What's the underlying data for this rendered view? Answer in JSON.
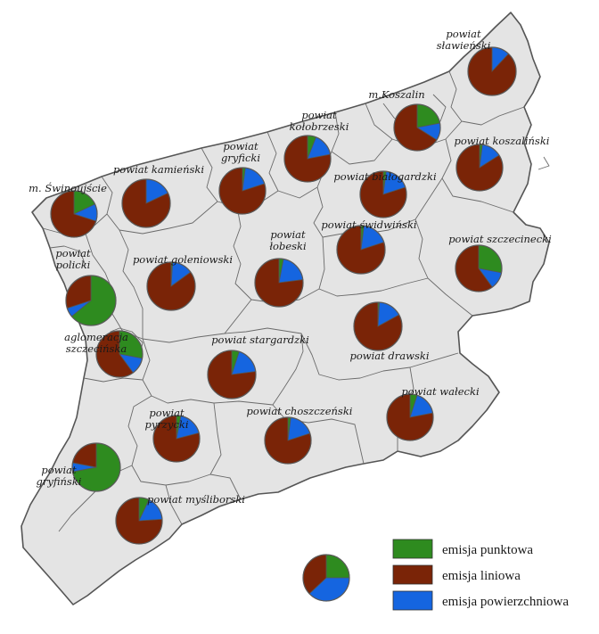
{
  "colors": {
    "punktowa": "#2e8b1f",
    "liniowa": "#7a2407",
    "powierzchniowa": "#1565e0",
    "region_fill": "#e4e4e4",
    "border": "#555555"
  },
  "legend": {
    "items": [
      {
        "key": "punktowa",
        "label": "emisja punktowa"
      },
      {
        "key": "liniowa",
        "label": "emisja liniowa"
      },
      {
        "key": "powierzchniowa",
        "label": "emisja powierzchniowa"
      }
    ],
    "sample": {
      "punktowa": 0.25,
      "liniowa": 0.37,
      "powierzchniowa": 0.38
    }
  },
  "districts": [
    {
      "id": "slawienski",
      "label": [
        "powiat",
        "sławieński"
      ],
      "shares": {
        "punktowa": 0.0,
        "liniowa": 0.88,
        "powierzchniowa": 0.12
      }
    },
    {
      "id": "koszalin",
      "label": [
        "m.Koszalin"
      ],
      "shares": {
        "punktowa": 0.22,
        "liniowa": 0.66,
        "powierzchniowa": 0.12
      }
    },
    {
      "id": "kolobrzeski",
      "label": [
        "powiat",
        "kołobrzeski"
      ],
      "shares": {
        "punktowa": 0.06,
        "liniowa": 0.78,
        "powierzchniowa": 0.16
      }
    },
    {
      "id": "koszalinski",
      "label": [
        "powiat koszaliński"
      ],
      "shares": {
        "punktowa": 0.02,
        "liniowa": 0.84,
        "powierzchniowa": 0.14
      }
    },
    {
      "id": "gryficki",
      "label": [
        "powiat",
        "gryficki"
      ],
      "shares": {
        "punktowa": 0.02,
        "liniowa": 0.8,
        "powierzchniowa": 0.18
      }
    },
    {
      "id": "kamienski",
      "label": [
        "powiat kamieński"
      ],
      "shares": {
        "punktowa": 0.0,
        "liniowa": 0.82,
        "powierzchniowa": 0.18
      }
    },
    {
      "id": "bialogardzki",
      "label": [
        "powiat białogardzki"
      ],
      "shares": {
        "punktowa": 0.02,
        "liniowa": 0.8,
        "powierzchniowa": 0.18
      }
    },
    {
      "id": "swinoujscie",
      "label": [
        "m. Świnoujście"
      ],
      "shares": {
        "punktowa": 0.18,
        "liniowa": 0.7,
        "powierzchniowa": 0.12
      }
    },
    {
      "id": "swidwinski",
      "label": [
        "powiat świdwiński"
      ],
      "shares": {
        "punktowa": 0.02,
        "liniowa": 0.8,
        "powierzchniowa": 0.18
      }
    },
    {
      "id": "szczecinecki",
      "label": [
        "powiat szczecinecki"
      ],
      "shares": {
        "punktowa": 0.28,
        "liniowa": 0.6,
        "powierzchniowa": 0.12
      }
    },
    {
      "id": "lobeski",
      "label": [
        "powiat",
        "łobeski"
      ],
      "shares": {
        "punktowa": 0.03,
        "liniowa": 0.77,
        "powierzchniowa": 0.2
      }
    },
    {
      "id": "policki",
      "label": [
        "powiat",
        "policki"
      ],
      "shares": {
        "punktowa": 0.64,
        "liniowa": 0.3,
        "powierzchniowa": 0.06
      }
    },
    {
      "id": "goleniowski",
      "label": [
        "powiat goleniowski"
      ],
      "shares": {
        "punktowa": 0.01,
        "liniowa": 0.85,
        "powierzchniowa": 0.14
      }
    },
    {
      "id": "drawski",
      "label": [
        "powiat drawski"
      ],
      "shares": {
        "punktowa": 0.01,
        "liniowa": 0.83,
        "powierzchniowa": 0.16
      }
    },
    {
      "id": "szczecin",
      "label": [
        "aglomeracja",
        "szczecińska"
      ],
      "shares": {
        "punktowa": 0.28,
        "liniowa": 0.6,
        "powierzchniowa": 0.12
      }
    },
    {
      "id": "stargardzki",
      "label": [
        "powiat stargardzki"
      ],
      "shares": {
        "punktowa": 0.05,
        "liniowa": 0.77,
        "powierzchniowa": 0.18
      }
    },
    {
      "id": "walecki",
      "label": [
        "powiat wałecki"
      ],
      "shares": {
        "punktowa": 0.05,
        "liniowa": 0.78,
        "powierzchniowa": 0.17
      }
    },
    {
      "id": "pyrzycki",
      "label": [
        "powiat",
        "pyrzycki"
      ],
      "shares": {
        "punktowa": 0.03,
        "liniowa": 0.79,
        "powierzchniowa": 0.18
      }
    },
    {
      "id": "choszczenski",
      "label": [
        "powiat choszczeński"
      ],
      "shares": {
        "punktowa": 0.02,
        "liniowa": 0.8,
        "powierzchniowa": 0.18
      }
    },
    {
      "id": "gryfinski",
      "label": [
        "powiat",
        "gryfiński"
      ],
      "shares": {
        "punktowa": 0.72,
        "liniowa": 0.22,
        "powierzchniowa": 0.06
      }
    },
    {
      "id": "mysliborski",
      "label": [
        "powiat myśliborski"
      ],
      "shares": {
        "punktowa": 0.07,
        "liniowa": 0.76,
        "powierzchniowa": 0.17
      }
    }
  ]
}
